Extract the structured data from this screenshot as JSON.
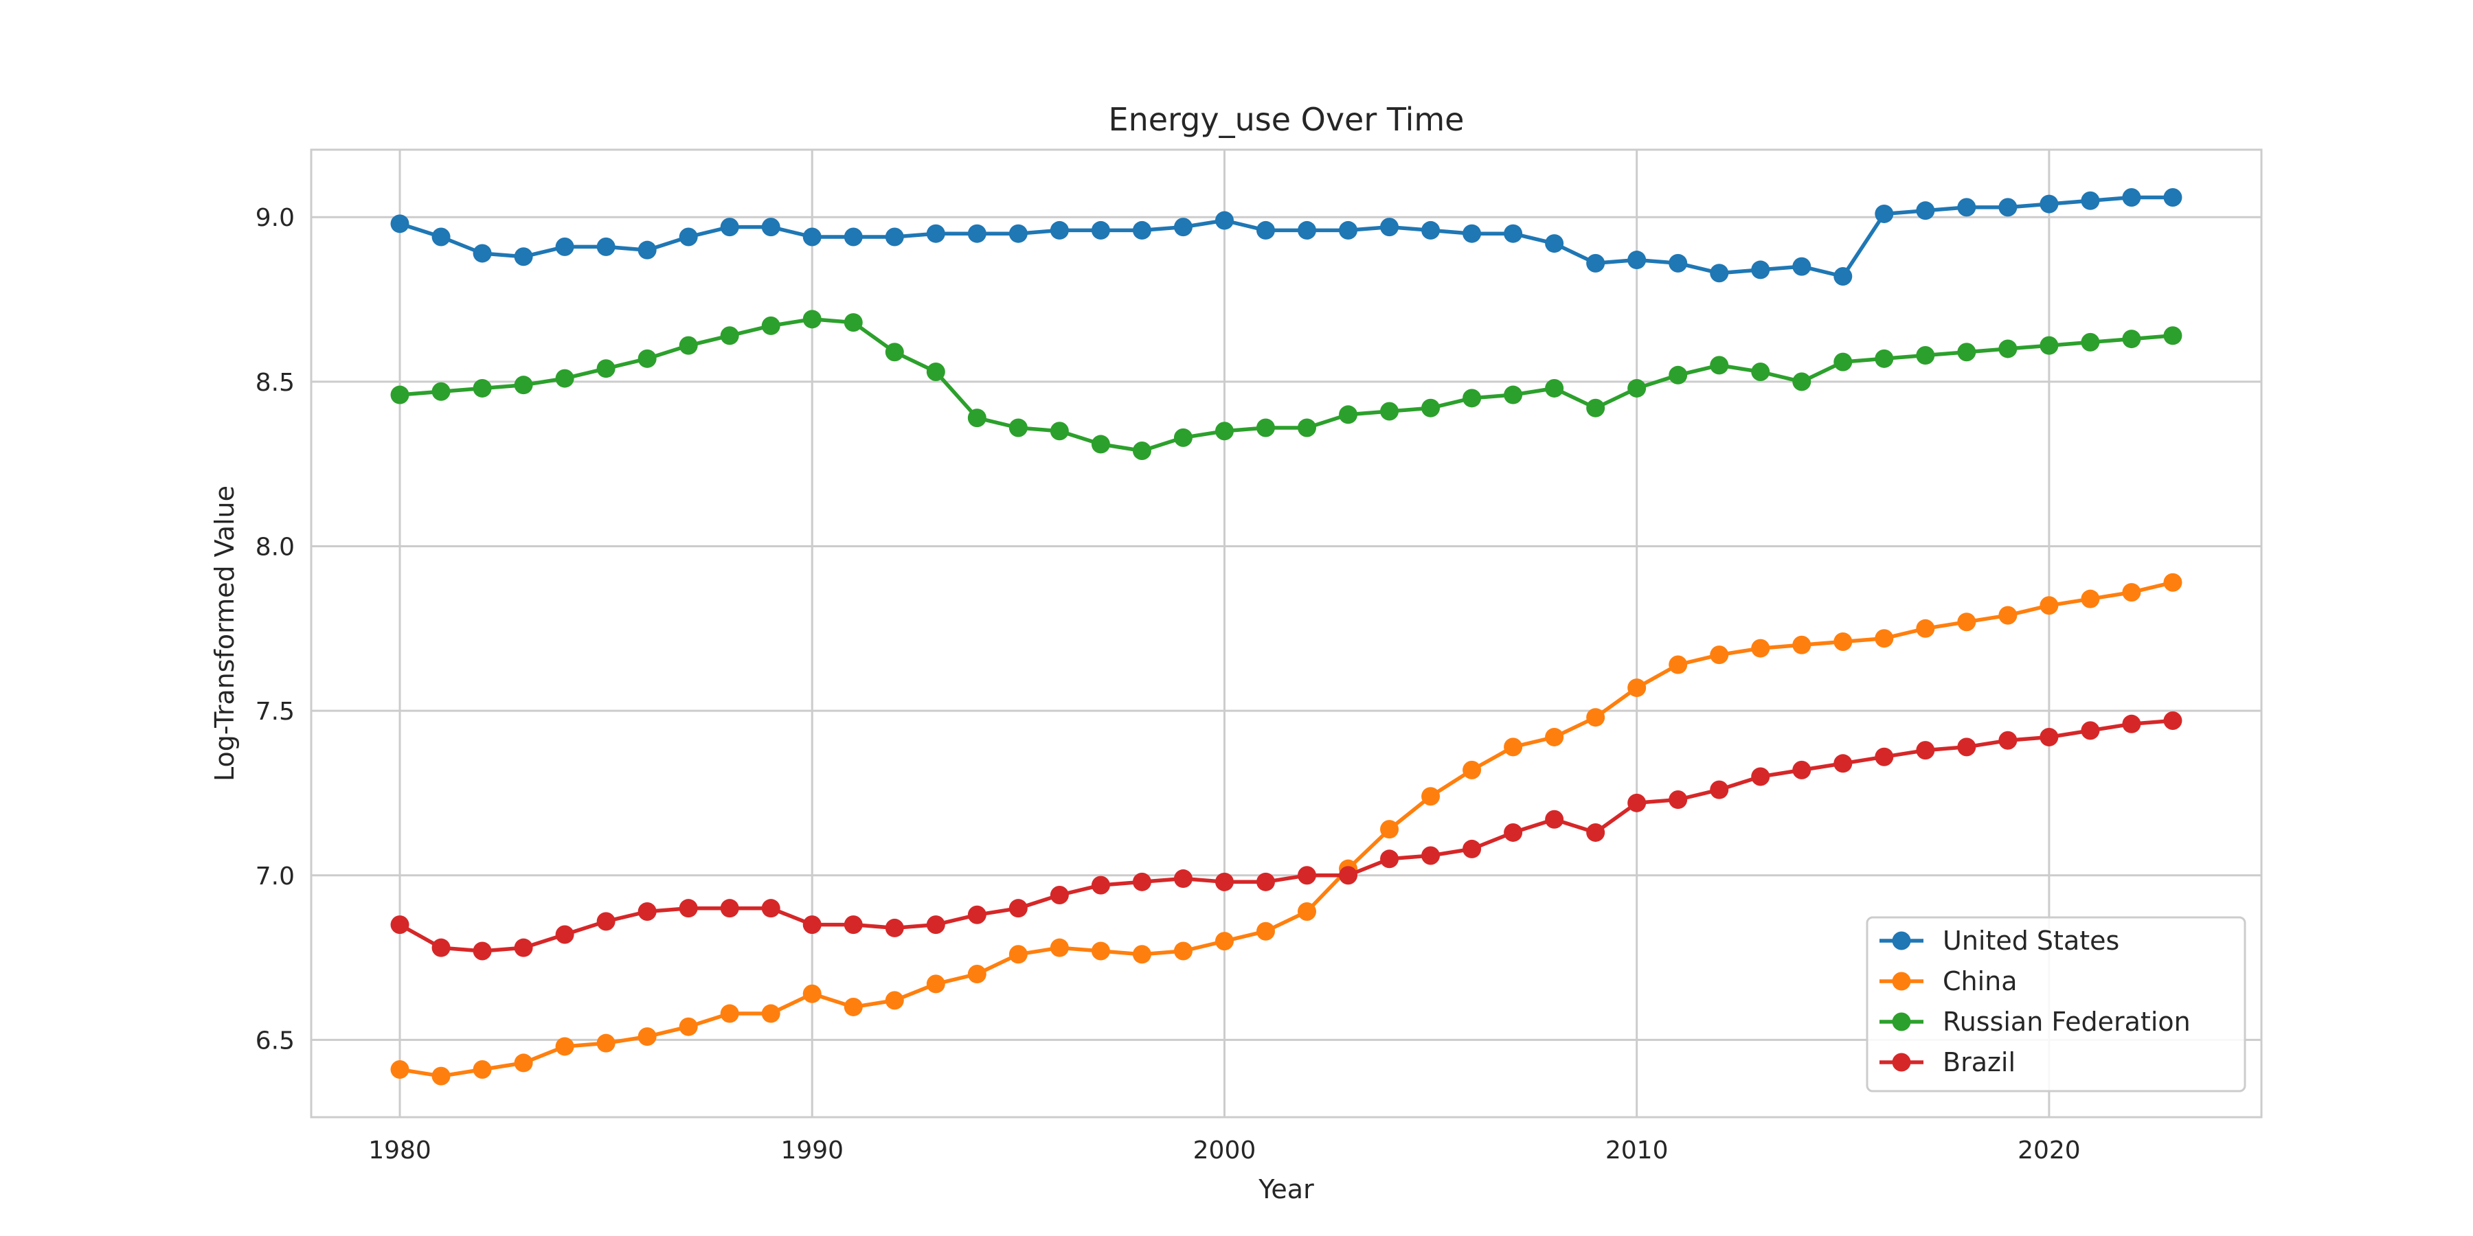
{
  "chart_data": {
    "type": "line",
    "title": "Energy_use Over Time",
    "xlabel": "Year",
    "ylabel": "Log-Transformed Value",
    "xlim": [
      1977.85,
      2025.15
    ],
    "ylim": [
      6.265,
      9.205
    ],
    "xticks": [
      1980,
      1990,
      2000,
      2010,
      2020
    ],
    "yticks": [
      6.5,
      7.0,
      7.5,
      8.0,
      8.5,
      9.0
    ],
    "ytick_labels": [
      "6.5",
      "7.0",
      "7.5",
      "8.0",
      "8.5",
      "9.0"
    ],
    "grid": true,
    "legend_position": "lower-right",
    "x": [
      1980,
      1981,
      1982,
      1983,
      1984,
      1985,
      1986,
      1987,
      1988,
      1989,
      1990,
      1991,
      1992,
      1993,
      1994,
      1995,
      1996,
      1997,
      1998,
      1999,
      2000,
      2001,
      2002,
      2003,
      2004,
      2005,
      2006,
      2007,
      2008,
      2009,
      2010,
      2011,
      2012,
      2013,
      2014,
      2015,
      2016,
      2017,
      2018,
      2019,
      2020,
      2021,
      2022,
      2023
    ],
    "series": [
      {
        "name": "United States",
        "color": "#1f77b4",
        "values": [
          8.98,
          8.94,
          8.89,
          8.88,
          8.91,
          8.91,
          8.9,
          8.94,
          8.97,
          8.97,
          8.94,
          8.94,
          8.94,
          8.95,
          8.95,
          8.95,
          8.96,
          8.96,
          8.96,
          8.97,
          8.99,
          8.96,
          8.96,
          8.96,
          8.97,
          8.96,
          8.95,
          8.95,
          8.92,
          8.86,
          8.87,
          8.86,
          8.83,
          8.84,
          8.85,
          8.82,
          9.01,
          9.02,
          9.03,
          9.03,
          9.04,
          9.05,
          9.06,
          9.06
        ]
      },
      {
        "name": "China",
        "color": "#ff7f0e",
        "values": [
          6.41,
          6.39,
          6.41,
          6.43,
          6.48,
          6.49,
          6.51,
          6.54,
          6.58,
          6.58,
          6.64,
          6.6,
          6.62,
          6.67,
          6.7,
          6.76,
          6.78,
          6.77,
          6.76,
          6.77,
          6.8,
          6.83,
          6.89,
          7.02,
          7.14,
          7.24,
          7.32,
          7.39,
          7.42,
          7.48,
          7.57,
          7.64,
          7.67,
          7.69,
          7.7,
          7.71,
          7.72,
          7.75,
          7.77,
          7.79,
          7.82,
          7.84,
          7.86,
          7.89
        ]
      },
      {
        "name": "Russian Federation",
        "color": "#2ca02c",
        "values": [
          8.46,
          8.47,
          8.48,
          8.49,
          8.51,
          8.54,
          8.57,
          8.61,
          8.64,
          8.67,
          8.69,
          8.68,
          8.59,
          8.53,
          8.39,
          8.36,
          8.35,
          8.31,
          8.29,
          8.33,
          8.35,
          8.36,
          8.36,
          8.4,
          8.41,
          8.42,
          8.45,
          8.46,
          8.48,
          8.42,
          8.48,
          8.52,
          8.55,
          8.53,
          8.5,
          8.56,
          8.57,
          8.58,
          8.59,
          8.6,
          8.61,
          8.62,
          8.63,
          8.64
        ]
      },
      {
        "name": "Brazil",
        "color": "#d62728",
        "values": [
          6.85,
          6.78,
          6.77,
          6.78,
          6.82,
          6.86,
          6.89,
          6.9,
          6.9,
          6.9,
          6.85,
          6.85,
          6.84,
          6.85,
          6.88,
          6.9,
          6.94,
          6.97,
          6.98,
          6.99,
          6.98,
          6.98,
          7.0,
          7.0,
          7.05,
          7.06,
          7.08,
          7.13,
          7.17,
          7.13,
          7.22,
          7.23,
          7.26,
          7.3,
          7.32,
          7.34,
          7.36,
          7.38,
          7.39,
          7.41,
          7.42,
          7.44,
          7.46,
          7.47
        ]
      }
    ]
  }
}
